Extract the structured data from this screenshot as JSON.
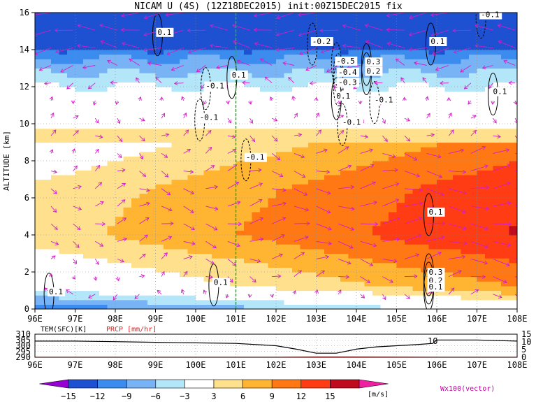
{
  "chart_data": [
    {
      "type": "heatmap",
      "title": "NICAM U (4S) (12Z18DEC2015) init:00Z15DEC2015 fix",
      "ylabel": "ALTITUDE [km]",
      "xlim": [
        96,
        108
      ],
      "ylim": [
        0,
        16
      ],
      "x_ticks": [
        "96E",
        "97E",
        "98E",
        "99E",
        "100E",
        "101E",
        "102E",
        "103E",
        "104E",
        "105E",
        "106E",
        "107E",
        "108E"
      ],
      "y_ticks": [
        "0",
        "2",
        "4",
        "6",
        "8",
        "10",
        "12",
        "14",
        "16"
      ],
      "marker_line_x": 101,
      "layers": [
        {
          "level": 0.0,
          "value": 0
        },
        {
          "level": 4.0,
          "value": 9
        },
        {
          "level": 6.5,
          "value": 8
        },
        {
          "level": 8.5,
          "value": 5
        },
        {
          "level": 10.5,
          "value": 2
        },
        {
          "level": 11.5,
          "value": -1
        },
        {
          "level": 12.5,
          "value": -5
        },
        {
          "level": 13.5,
          "value": -9
        },
        {
          "level": 14.5,
          "value": -14
        },
        {
          "level": 16.0,
          "value": -15
        }
      ],
      "contour_labels": [
        {
          "text": "0.1",
          "x": 96.35,
          "y": 0.8
        },
        {
          "text": "0.1",
          "x": 100.45,
          "y": 1.3
        },
        {
          "text": "-0.1",
          "x": 100.25,
          "y": 11.9
        },
        {
          "text": "0.1",
          "x": 99.05,
          "y": 14.8
        },
        {
          "text": "0.1",
          "x": 100.9,
          "y": 12.5
        },
        {
          "text": "-0.1",
          "x": 100.1,
          "y": 10.2
        },
        {
          "text": "-0.1",
          "x": 101.25,
          "y": 8.05
        },
        {
          "text": "-0.2",
          "x": 102.9,
          "y": 14.3
        },
        {
          "text": "-0.5",
          "x": 103.5,
          "y": 13.25
        },
        {
          "text": "-0.4",
          "x": 103.55,
          "y": 12.65
        },
        {
          "text": "-0.3",
          "x": 103.55,
          "y": 12.1
        },
        {
          "text": "0.3",
          "x": 104.25,
          "y": 13.2
        },
        {
          "text": "0.2",
          "x": 104.25,
          "y": 12.7
        },
        {
          "text": "0.1",
          "x": 103.5,
          "y": 11.35
        },
        {
          "text": "-0.1",
          "x": 104.45,
          "y": 11.15
        },
        {
          "text": "-0.1",
          "x": 103.65,
          "y": 9.95
        },
        {
          "text": "0.1",
          "x": 105.85,
          "y": 14.3
        },
        {
          "text": "-0.1",
          "x": 107.1,
          "y": 15.75
        },
        {
          "text": "0.1",
          "x": 107.4,
          "y": 11.6
        },
        {
          "text": "0.1",
          "x": 105.8,
          "y": 5.1
        },
        {
          "text": "0.3",
          "x": 105.8,
          "y": 1.85
        },
        {
          "text": "0.2",
          "x": 105.8,
          "y": 1.4
        },
        {
          "text": "0.1",
          "x": 105.8,
          "y": 1.05
        }
      ]
    },
    {
      "type": "line",
      "series": [
        {
          "name": "TEM(SFC)[K]",
          "x": [
            96,
            97,
            98,
            99,
            100,
            101,
            102,
            102.5,
            103,
            103.5,
            104,
            104.5,
            105,
            105.5,
            105.9,
            106,
            106.5,
            107,
            108
          ],
          "values": [
            304,
            304,
            303.5,
            303,
            302.5,
            302,
            300,
            297,
            293.5,
            293.5,
            297,
            299,
            300,
            301,
            302,
            305,
            305,
            305,
            304
          ]
        },
        {
          "name": "PRCP [mm/hr]",
          "x": [
            96,
            102,
            103,
            104,
            106,
            108
          ],
          "values": [
            0,
            0,
            0.2,
            0.2,
            0,
            0
          ]
        }
      ],
      "left_ticks": [
        "310",
        "305",
        "300",
        "295",
        "290"
      ],
      "right_ticks": [
        "15",
        "10",
        "5",
        "0"
      ],
      "x_ticks": [
        "96E",
        "97E",
        "98E",
        "99E",
        "100E",
        "101E",
        "102E",
        "103E",
        "104E",
        "105E",
        "106E",
        "107E",
        "108E"
      ],
      "annotation": "10"
    },
    {
      "type": "colorbar",
      "tick_labels": [
        "−15",
        "−12",
        "−9",
        "−6",
        "−3",
        "3",
        "6",
        "9",
        "12",
        "15"
      ],
      "colors": [
        "#9600d2",
        "#1e50d2",
        "#3c8cf0",
        "#78b4f5",
        "#b4e6fa",
        "#ffffff",
        "#ffe08c",
        "#ffb432",
        "#ff7814",
        "#ff3c14",
        "#c00a1e",
        "#f01ea0"
      ],
      "unit": "[m/s]",
      "vector_note": "Wx100(vector)"
    }
  ]
}
